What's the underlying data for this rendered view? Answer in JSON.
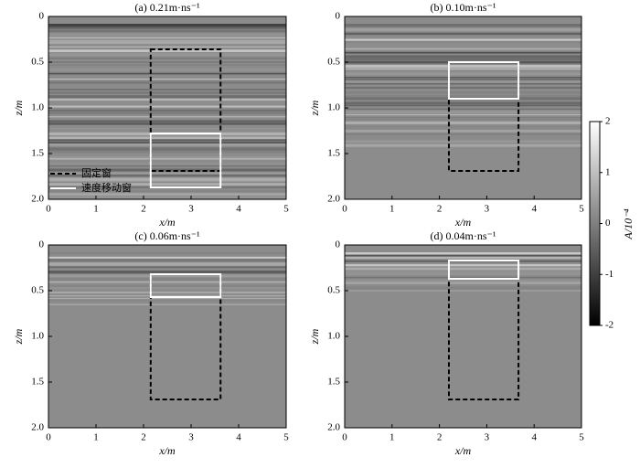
{
  "chart_data": [
    {
      "type": "image",
      "title": "(a) 0.21m·ns⁻¹",
      "xlabel": "x/m",
      "ylabel": "z/m",
      "xlim": [
        0,
        5
      ],
      "ylim": [
        2,
        0
      ],
      "xticks": [
        0,
        1,
        2,
        3,
        4,
        5
      ],
      "yticks": [
        0,
        0.5,
        {
          "value": 1,
          "label": "1.0"
        },
        1.5,
        {
          "value": 2,
          "label": "2.0"
        }
      ],
      "windows": [
        {
          "name": "固定窗",
          "style": "dashed",
          "color": "#000000",
          "x": [
            2.15,
            3.62
          ],
          "z": [
            0.36,
            1.69
          ]
        },
        {
          "name": "速度移动窗",
          "style": "solid",
          "color": "#ffffff",
          "x": [
            2.15,
            3.62
          ],
          "z": [
            1.28,
            1.87
          ]
        }
      ],
      "legend": "lower left"
    },
    {
      "type": "image",
      "title": "(b) 0.10m·ns⁻¹",
      "xlabel": "x/m",
      "ylabel": "z/m",
      "xlim": [
        0,
        5
      ],
      "ylim": [
        2,
        0
      ],
      "xticks": [
        0,
        1,
        2,
        3,
        4,
        5
      ],
      "yticks": [
        0,
        0.5,
        {
          "value": 1,
          "label": "1.0"
        },
        1.5,
        {
          "value": 2,
          "label": "2.0"
        }
      ],
      "windows": [
        {
          "style": "dashed",
          "color": "#000000",
          "x": [
            2.2,
            3.67
          ],
          "z": [
            0.5,
            1.69
          ]
        },
        {
          "style": "solid",
          "color": "#ffffff",
          "x": [
            2.2,
            3.67
          ],
          "z": [
            0.5,
            0.9
          ]
        }
      ]
    },
    {
      "type": "image",
      "title": "(c) 0.06m·ns⁻¹",
      "xlabel": "x/m",
      "ylabel": "z/m",
      "xlim": [
        0,
        5
      ],
      "ylim": [
        2,
        0
      ],
      "xticks": [
        0,
        1,
        2,
        3,
        4,
        5
      ],
      "yticks": [
        0,
        0.5,
        {
          "value": 1,
          "label": "1.0"
        },
        1.5,
        {
          "value": 2,
          "label": "2.0"
        }
      ],
      "windows": [
        {
          "style": "dashed",
          "color": "#000000",
          "x": [
            2.15,
            3.62
          ],
          "z": [
            0.32,
            1.69
          ]
        },
        {
          "style": "solid",
          "color": "#ffffff",
          "x": [
            2.15,
            3.62
          ],
          "z": [
            0.32,
            0.57
          ]
        }
      ]
    },
    {
      "type": "image",
      "title": "(d) 0.04m·ns⁻¹",
      "xlabel": "x/m",
      "ylabel": "z/m",
      "xlim": [
        0,
        5
      ],
      "ylim": [
        2,
        0
      ],
      "xticks": [
        0,
        1,
        2,
        3,
        4,
        5
      ],
      "yticks": [
        0,
        0.5,
        {
          "value": 1,
          "label": "1.0"
        },
        1.5,
        {
          "value": 2,
          "label": "2.0"
        }
      ],
      "windows": [
        {
          "style": "dashed",
          "color": "#000000",
          "x": [
            2.2,
            3.67
          ],
          "z": [
            0.37,
            1.69
          ]
        },
        {
          "style": "solid",
          "color": "#ffffff",
          "x": [
            2.2,
            3.67
          ],
          "z": [
            0.17,
            0.37
          ]
        }
      ]
    }
  ],
  "colorbar": {
    "label": "A/10⁻⁴",
    "lim": [
      -2,
      2
    ],
    "ticks": [
      2,
      1,
      0,
      -1,
      -2
    ]
  }
}
